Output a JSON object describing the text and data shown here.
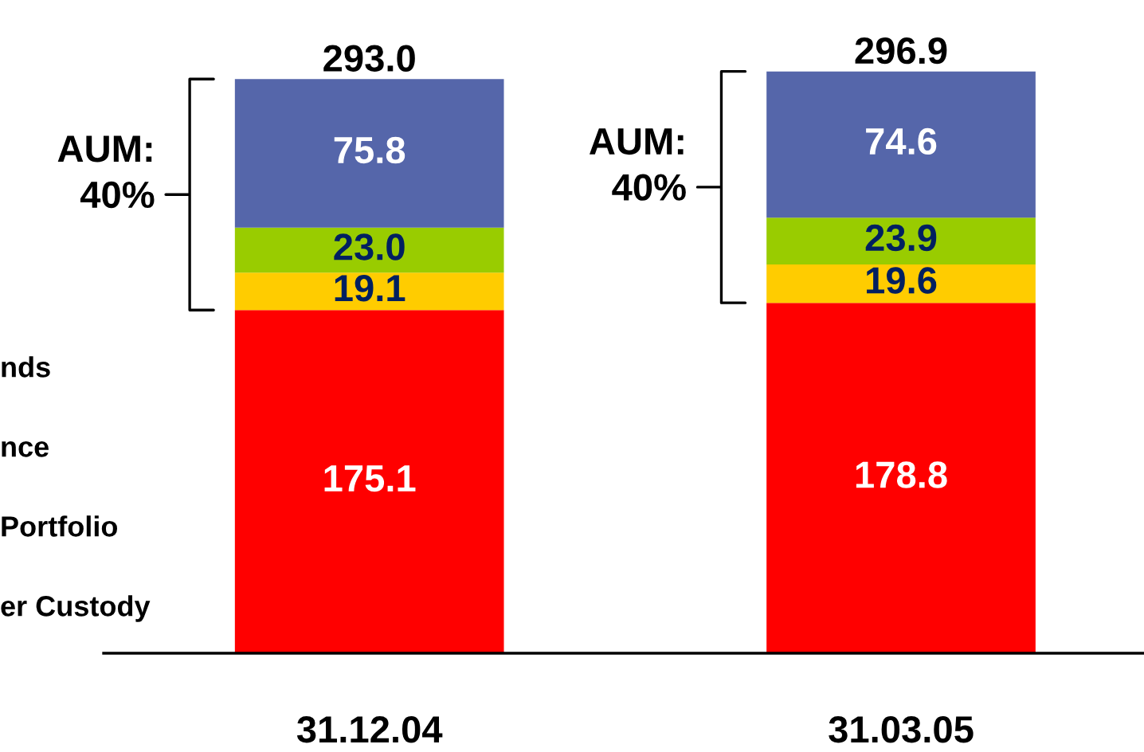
{
  "chart_data": {
    "type": "bar",
    "stacked": true,
    "categories": [
      "31.12.04",
      "31.03.05"
    ],
    "series": [
      {
        "color": "#ff0000",
        "values": [
          175.1,
          178.8
        ],
        "value_labels": [
          "175.1",
          "178.8"
        ]
      },
      {
        "color": "#ffcc00",
        "values": [
          19.1,
          19.6
        ],
        "value_labels": [
          "19.1",
          "19.6"
        ]
      },
      {
        "color": "#99cc00",
        "values": [
          23.0,
          23.9
        ],
        "value_labels": [
          "23.0",
          "23.9"
        ]
      },
      {
        "color": "#5566aa",
        "values": [
          75.8,
          74.6
        ],
        "value_labels": [
          "75.8",
          "74.6"
        ]
      }
    ],
    "totals": [
      "293.0",
      "296.9"
    ],
    "annotations": [
      "AUM:\n40%",
      "AUM:\n40%",
      "nds",
      "nce",
      "Portfolio",
      "er Custody"
    ],
    "legend": false,
    "grid": false
  }
}
